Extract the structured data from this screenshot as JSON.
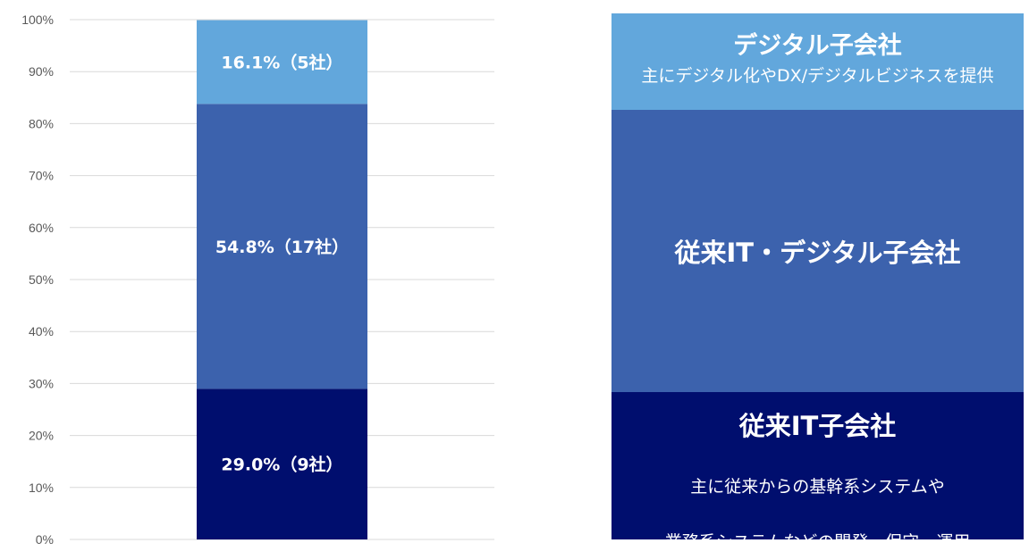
{
  "chart_data": {
    "type": "bar",
    "stacked": true,
    "normalized": true,
    "categories": [
      ""
    ],
    "ylim": [
      0,
      100
    ],
    "yticks": [
      "0%",
      "10%",
      "20%",
      "30%",
      "40%",
      "50%",
      "60%",
      "70%",
      "80%",
      "90%",
      "100%"
    ],
    "grid": true,
    "series": [
      {
        "name": "従来IT子会社",
        "values": [
          29.0
        ],
        "label": "29.0%（9社）",
        "color": "#000e6e"
      },
      {
        "name": "従来IT・デジタル子会社",
        "values": [
          54.8
        ],
        "label": "54.8%（17社）",
        "color": "#3c62ad"
      },
      {
        "name": "デジタル子会社",
        "values": [
          16.1
        ],
        "label": "16.1%（5社）",
        "color": "#62a7dc"
      }
    ]
  },
  "legend_panels": {
    "digital": {
      "title": "デジタル子会社",
      "desc_lines": [
        "主にデジタル化やDX/デジタルビジネスを提供"
      ],
      "color": "#62a7dc"
    },
    "hybrid": {
      "title": "従来IT・デジタル子会社",
      "color": "#3c62ad"
    },
    "legacy": {
      "title": "従来IT子会社",
      "desc_lines": [
        "主に従来からの基幹系システムや",
        "業務系システムなどの開発・保守・運用"
      ],
      "color": "#000e6e"
    }
  }
}
